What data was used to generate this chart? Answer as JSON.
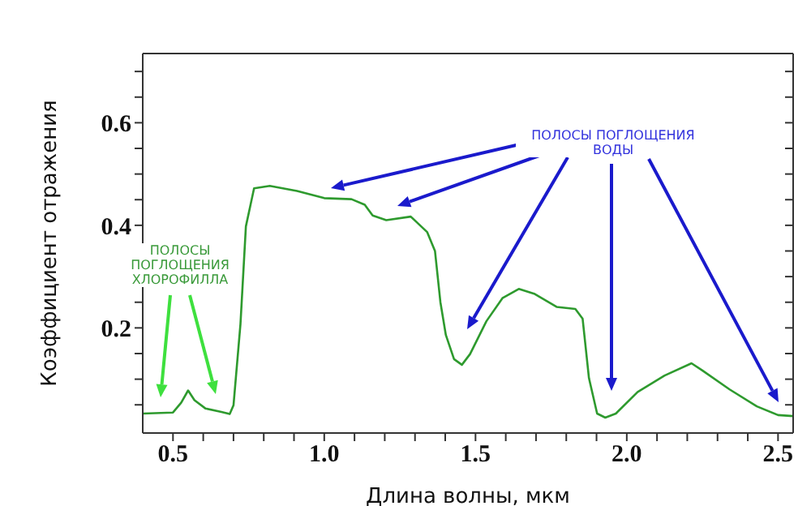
{
  "chart_data": {
    "type": "line",
    "xlabel": "Длина волны, мкм",
    "ylabel": "Коэффициент отражения",
    "annotations": [
      "ПОЛОСЫ ПОГЛОЩЕНИЯ ХЛОРОФИЛЛА",
      "ПОЛОСЫ ПОГЛОЩЕНИЯ ВОДЫ"
    ],
    "x": [
      0.4,
      0.5,
      0.527,
      0.55,
      0.571,
      0.607,
      0.66,
      0.6875,
      0.7,
      0.723,
      0.741,
      0.768,
      0.82,
      0.91,
      1.0,
      1.09,
      1.134,
      1.16,
      1.205,
      1.286,
      1.34,
      1.366,
      1.384,
      1.402,
      1.429,
      1.455,
      1.482,
      1.536,
      1.589,
      1.643,
      1.696,
      1.768,
      1.83,
      1.854,
      1.875,
      1.902,
      1.929,
      1.964,
      2.036,
      2.125,
      2.214,
      2.25,
      2.34,
      2.43,
      2.5,
      2.55
    ],
    "series": [
      {
        "color": "#2e9a2e",
        "values": [
          0.033,
          0.035,
          0.054,
          0.078,
          0.059,
          0.043,
          0.036,
          0.032,
          0.049,
          0.207,
          0.398,
          0.472,
          0.477,
          0.467,
          0.453,
          0.451,
          0.44,
          0.419,
          0.41,
          0.417,
          0.387,
          0.35,
          0.25,
          0.186,
          0.139,
          0.128,
          0.149,
          0.213,
          0.258,
          0.276,
          0.266,
          0.241,
          0.237,
          0.218,
          0.102,
          0.033,
          0.025,
          0.033,
          0.075,
          0.107,
          0.131,
          0.117,
          0.08,
          0.047,
          0.03,
          0.028
        ]
      }
    ],
    "xlim": [
      0.4,
      2.55
    ],
    "ylim": [
      -0.005,
      0.735
    ],
    "xticks": [
      0.5,
      {
        "value": 0.6,
        "label": null
      },
      {
        "value": 0.7,
        "label": null
      },
      {
        "value": 0.8,
        "label": null
      },
      {
        "value": 0.9,
        "label": null
      },
      {
        "value": 1,
        "label": "1.0"
      },
      {
        "value": 1.1,
        "label": null
      },
      {
        "value": 1.2,
        "label": null
      },
      {
        "value": 1.3,
        "label": null
      },
      {
        "value": 1.4,
        "label": null
      },
      1.5,
      {
        "value": 1.6,
        "label": null
      },
      {
        "value": 1.7,
        "label": null
      },
      {
        "value": 1.8,
        "label": null
      },
      {
        "value": 1.9,
        "label": null
      },
      {
        "value": 2,
        "label": "2.0"
      },
      {
        "value": 2.1,
        "label": null
      },
      {
        "value": 2.2,
        "label": null
      },
      {
        "value": 2.3,
        "label": null
      },
      {
        "value": 2.4,
        "label": null
      },
      2.5
    ],
    "yticks": [
      {
        "value": 0.05,
        "label": null
      },
      {
        "value": 0.1,
        "label": null
      },
      {
        "value": 0.15,
        "label": null
      },
      0.2,
      {
        "value": 0.25,
        "label": null
      },
      {
        "value": 0.3,
        "label": null
      },
      {
        "value": 0.35,
        "label": null
      },
      0.4,
      {
        "value": 0.45,
        "label": null
      },
      {
        "value": 0.5,
        "label": null
      },
      {
        "value": 0.55,
        "label": null
      },
      0.6,
      {
        "value": 0.65,
        "label": null
      },
      {
        "value": 0.7,
        "label": null
      }
    ],
    "grid": false,
    "legend": false,
    "marker": "none",
    "line_style": "solid"
  }
}
